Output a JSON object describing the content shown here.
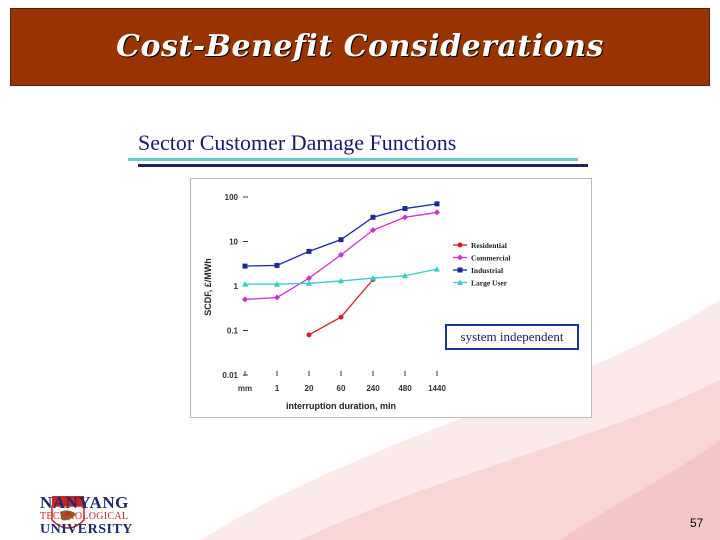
{
  "slide": {
    "title": "Cost-Benefit Considerations",
    "subtitle": "Sector Customer Damage Functions",
    "annotation": "system independent",
    "page_number": "57",
    "logo": {
      "line1": "NANYANG",
      "line2": "TECHNOLOGICAL",
      "line3": "UNIVERSITY"
    }
  },
  "chart_data": {
    "type": "line",
    "title": "",
    "xlabel": "interruption duration, min",
    "ylabel": "SCDF, £/MWh",
    "y_scale": "log",
    "ylim": [
      0.01,
      100
    ],
    "y_ticks": [
      "100",
      "10",
      "1",
      "0.1",
      "0.01"
    ],
    "y_tick_values": [
      100,
      10,
      1,
      0.1,
      0.01
    ],
    "categories": [
      "mm",
      "1",
      "20",
      "60",
      "240",
      "480",
      "1440"
    ],
    "legend_position": "right",
    "grid": false,
    "series": [
      {
        "name": "Residential",
        "color": "#cc2222",
        "marker": "circle",
        "values": [
          null,
          null,
          0.08,
          0.2,
          1.4,
          null,
          null
        ]
      },
      {
        "name": "Commercial",
        "color": "#cc33cc",
        "marker": "diamond",
        "values": [
          0.5,
          0.55,
          1.5,
          5.0,
          18.0,
          35.0,
          45.0
        ]
      },
      {
        "name": "Industrial",
        "color": "#1a2a99",
        "marker": "square",
        "values": [
          2.8,
          2.9,
          6.0,
          11.0,
          35.0,
          55.0,
          70.0
        ]
      },
      {
        "name": "Large User",
        "color": "#33cccc",
        "marker": "triangle",
        "values": [
          1.1,
          1.1,
          1.15,
          1.3,
          1.5,
          1.7,
          2.4
        ]
      }
    ]
  }
}
